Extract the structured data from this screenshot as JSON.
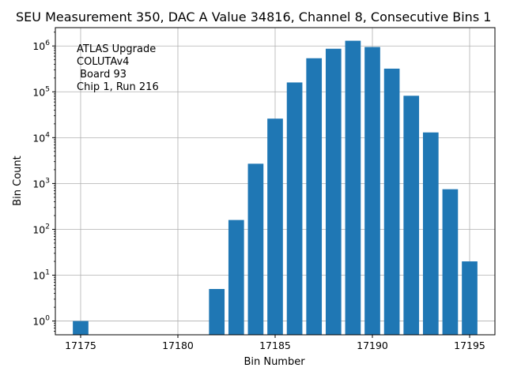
{
  "chart_data": {
    "type": "bar",
    "title": "SEU Measurement 350, DAC A Value 34816, Channel 8, Consecutive Bins 1",
    "xlabel": "Bin Number",
    "ylabel": "Bin Count",
    "yscale": "log",
    "xlim": [
      17173.7,
      17196.3
    ],
    "ylim_exp": [
      -0.3,
      6.4
    ],
    "x": [
      17175,
      17182,
      17183,
      17184,
      17185,
      17186,
      17187,
      17188,
      17189,
      17190,
      17191,
      17192,
      17193,
      17194,
      17195
    ],
    "values": [
      1,
      5,
      160,
      2700,
      26000,
      160000,
      540000,
      870000,
      1300000,
      950000,
      320000,
      82000,
      13000,
      750,
      20
    ],
    "bar_color": "#1f77b4",
    "grid": true,
    "x_ticks": [
      17175,
      17180,
      17185,
      17190,
      17195
    ],
    "x_tick_labels": [
      "17175",
      "17180",
      "17185",
      "17190",
      "17195"
    ],
    "y_ticks_exp": [
      0,
      1,
      2,
      3,
      4,
      5,
      6
    ],
    "y_tick_base": "10",
    "annotation": [
      "ATLAS Upgrade",
      "COLUTAv4",
      " Board 93",
      "Chip 1, Run 216"
    ]
  }
}
